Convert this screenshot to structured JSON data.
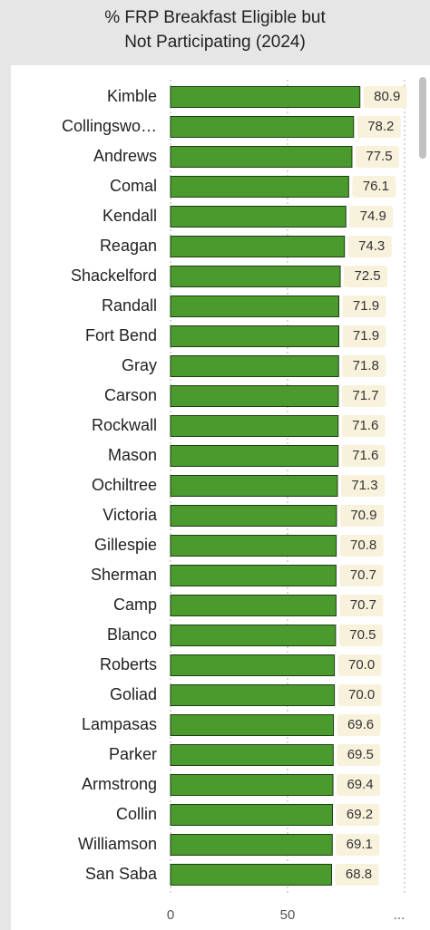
{
  "chart_data": {
    "type": "bar",
    "orientation": "horizontal",
    "title": "% FRP Breakfast Eligible but Not Participating (2024)",
    "categories": [
      "Kimble",
      "Collingswo…",
      "Andrews",
      "Comal",
      "Kendall",
      "Reagan",
      "Shackelford",
      "Randall",
      "Fort Bend",
      "Gray",
      "Carson",
      "Rockwall",
      "Mason",
      "Ochiltree",
      "Victoria",
      "Gillespie",
      "Sherman",
      "Camp",
      "Blanco",
      "Roberts",
      "Goliad",
      "Lampasas",
      "Parker",
      "Armstrong",
      "Collin",
      "Williamson",
      "San Saba"
    ],
    "values": [
      80.9,
      78.2,
      77.5,
      76.1,
      74.9,
      74.3,
      72.5,
      71.9,
      71.9,
      71.8,
      71.7,
      71.6,
      71.6,
      71.3,
      70.9,
      70.8,
      70.7,
      70.7,
      70.5,
      70.0,
      70.0,
      69.6,
      69.5,
      69.4,
      69.2,
      69.1,
      68.8
    ],
    "value_labels": [
      "80.9",
      "78.2",
      "77.5",
      "76.1",
      "74.9",
      "74.3",
      "72.5",
      "71.9",
      "71.9",
      "71.8",
      "71.7",
      "71.6",
      "71.6",
      "71.3",
      "70.9",
      "70.8",
      "70.7",
      "70.7",
      "70.5",
      "70.0",
      "70.0",
      "69.6",
      "69.5",
      "69.4",
      "69.2",
      "69.1",
      "68.8"
    ],
    "color": "#4a9a2e",
    "xlim": [
      0,
      100
    ],
    "xticks": [
      0,
      50,
      {
        "value": 100,
        "label": "..."
      }
    ],
    "grid": true
  }
}
